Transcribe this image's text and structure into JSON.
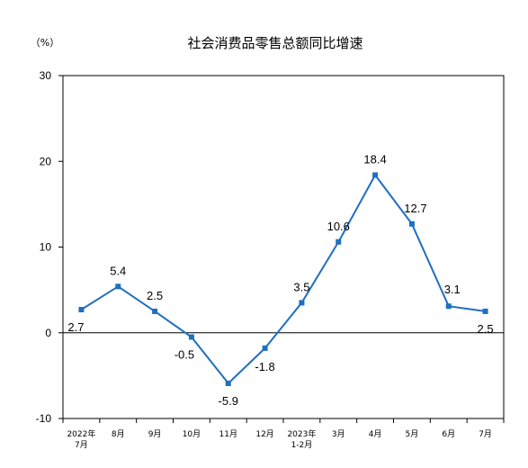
{
  "chart_data": {
    "type": "line",
    "title": "社会消费品零售总额同比增速",
    "unit_label": "（%）",
    "categories": [
      [
        "2022年",
        "7月"
      ],
      [
        "8月"
      ],
      [
        "9月"
      ],
      [
        "10月"
      ],
      [
        "11月"
      ],
      [
        "12月"
      ],
      [
        "2023年",
        "1-2月"
      ],
      [
        "3月"
      ],
      [
        "4月"
      ],
      [
        "5月"
      ],
      [
        "6月"
      ],
      [
        "7月"
      ]
    ],
    "series": [
      {
        "values": [
          2.7,
          5.4,
          2.5,
          -0.5,
          -5.9,
          -1.8,
          3.5,
          10.6,
          18.4,
          12.7,
          3.1,
          2.5
        ]
      }
    ],
    "data_labels": [
      "2.7",
      "5.4",
      "2.5",
      "-0.5",
      "-5.9",
      "-1.8",
      "3.5",
      "10.6",
      "18.4",
      "12.7",
      "3.1",
      "2.5"
    ],
    "ylim": [
      -10,
      30
    ],
    "yticks": [
      -10,
      0,
      10,
      20,
      30
    ],
    "grid": false,
    "colors": {
      "line": "#1f6fbf",
      "marker": "#1f6fbf",
      "axis": "#000000"
    }
  }
}
